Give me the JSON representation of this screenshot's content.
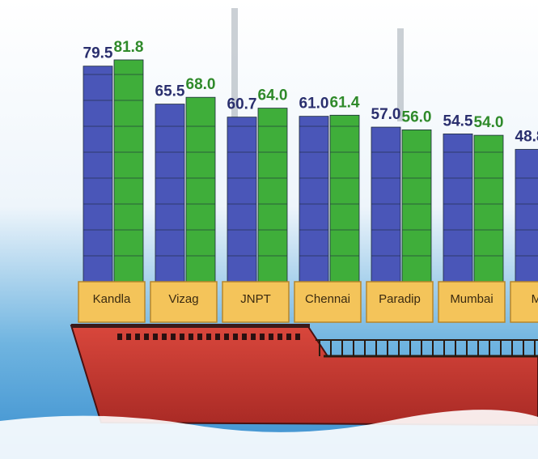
{
  "chart_data": {
    "type": "bar",
    "categories": [
      "Kandla",
      "Vizag",
      "JNPT",
      "Chennai",
      "Paradip",
      "Mumbai",
      "Morr"
    ],
    "series": [
      {
        "color": "#4a56b8",
        "values": [
          79.5,
          65.5,
          60.7,
          61.0,
          57.0,
          54.5,
          48.8
        ],
        "value_labels": [
          "79.5",
          "65.5",
          "60.7",
          "61.0",
          "57.0",
          "54.5",
          "48.8"
        ]
      },
      {
        "color": "#3fae3a",
        "values": [
          81.8,
          68.0,
          64.0,
          61.4,
          56.0,
          54.0,
          null
        ],
        "value_labels": [
          "81.8",
          "68.0",
          "64.0",
          "61.4",
          "56.0",
          "54.0",
          null
        ]
      }
    ]
  }
}
